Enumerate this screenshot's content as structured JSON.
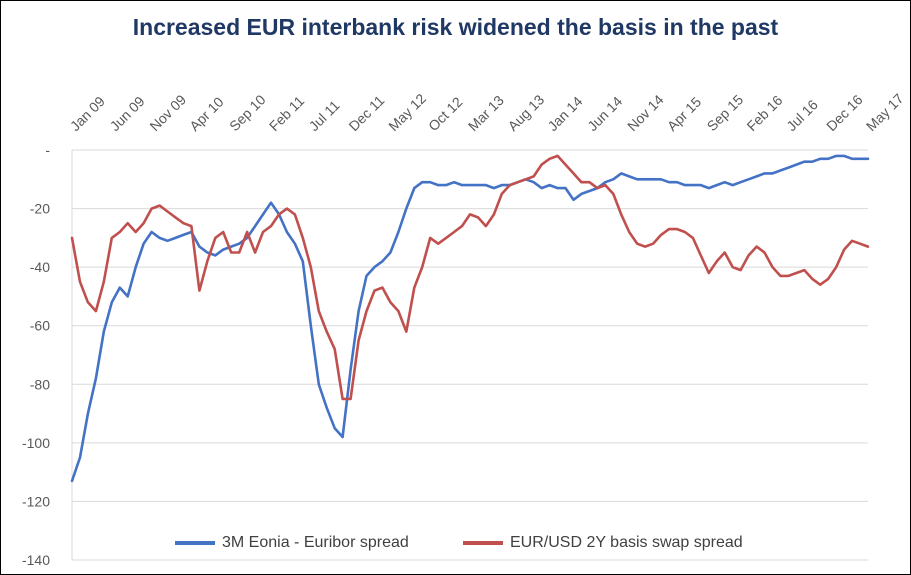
{
  "chart_data": {
    "type": "line",
    "title": "Increased EUR interbank risk widened the basis in the past",
    "xlabel": "",
    "ylabel": "",
    "x_tick_labels": [
      "Jan 09",
      "Jun 09",
      "Nov 09",
      "Apr 10",
      "Sep 10",
      "Feb 11",
      "Jul 11",
      "Dec 11",
      "May 12",
      "Oct 12",
      "Mar 13",
      "Aug 13",
      "Jan 14",
      "Jun 14",
      "Nov 14",
      "Apr 15",
      "Sep 15",
      "Feb 16",
      "Jul 16",
      "Dec 16",
      "May 17"
    ],
    "y_tick_labels": [
      "-",
      "-20",
      "-40",
      "-60",
      "-80",
      "-100",
      "-120",
      "-140"
    ],
    "ylim": [
      -140,
      0
    ],
    "grid": true,
    "legend_position": "bottom",
    "series": [
      {
        "name": "3M Eonia - Euribor spread",
        "color": "#4472C4",
        "points": [
          [
            "Jan 09",
            -113
          ],
          [
            "Feb 09",
            -105
          ],
          [
            "Mar 09",
            -90
          ],
          [
            "Apr 09",
            -78
          ],
          [
            "May 09",
            -62
          ],
          [
            "Jun 09",
            -52
          ],
          [
            "Jul 09",
            -47
          ],
          [
            "Aug 09",
            -50
          ],
          [
            "Sep 09",
            -40
          ],
          [
            "Oct 09",
            -32
          ],
          [
            "Nov 09",
            -28
          ],
          [
            "Dec 09",
            -30
          ],
          [
            "Jan 10",
            -31
          ],
          [
            "Feb 10",
            -30
          ],
          [
            "Mar 10",
            -29
          ],
          [
            "Apr 10",
            -28
          ],
          [
            "May 10",
            -33
          ],
          [
            "Jun 10",
            -35
          ],
          [
            "Jul 10",
            -36
          ],
          [
            "Aug 10",
            -34
          ],
          [
            "Sep 10",
            -33
          ],
          [
            "Oct 10",
            -32
          ],
          [
            "Nov 10",
            -30
          ],
          [
            "Dec 10",
            -26
          ],
          [
            "Jan 11",
            -22
          ],
          [
            "Feb 11",
            -18
          ],
          [
            "Mar 11",
            -22
          ],
          [
            "Apr 11",
            -28
          ],
          [
            "May 11",
            -32
          ],
          [
            "Jun 11",
            -38
          ],
          [
            "Jul 11",
            -60
          ],
          [
            "Aug 11",
            -80
          ],
          [
            "Sep 11",
            -88
          ],
          [
            "Oct 11",
            -95
          ],
          [
            "Nov 11",
            -98
          ],
          [
            "Dec 11",
            -75
          ],
          [
            "Jan 12",
            -55
          ],
          [
            "Feb 12",
            -43
          ],
          [
            "Mar 12",
            -40
          ],
          [
            "Apr 12",
            -38
          ],
          [
            "May 12",
            -35
          ],
          [
            "Jun 12",
            -28
          ],
          [
            "Jul 12",
            -20
          ],
          [
            "Aug 12",
            -13
          ],
          [
            "Sep 12",
            -11
          ],
          [
            "Oct 12",
            -11
          ],
          [
            "Nov 12",
            -12
          ],
          [
            "Dec 12",
            -12
          ],
          [
            "Jan 13",
            -11
          ],
          [
            "Feb 13",
            -12
          ],
          [
            "Mar 13",
            -12
          ],
          [
            "Apr 13",
            -12
          ],
          [
            "May 13",
            -12
          ],
          [
            "Jun 13",
            -13
          ],
          [
            "Jul 13",
            -12
          ],
          [
            "Aug 13",
            -12
          ],
          [
            "Sep 13",
            -11
          ],
          [
            "Oct 13",
            -10
          ],
          [
            "Nov 13",
            -11
          ],
          [
            "Dec 13",
            -13
          ],
          [
            "Jan 14",
            -12
          ],
          [
            "Feb 14",
            -13
          ],
          [
            "Mar 14",
            -13
          ],
          [
            "Apr 14",
            -17
          ],
          [
            "May 14",
            -15
          ],
          [
            "Jun 14",
            -14
          ],
          [
            "Jul 14",
            -13
          ],
          [
            "Aug 14",
            -11
          ],
          [
            "Sep 14",
            -10
          ],
          [
            "Oct 14",
            -8
          ],
          [
            "Nov 14",
            -9
          ],
          [
            "Dec 14",
            -10
          ],
          [
            "Jan 15",
            -10
          ],
          [
            "Feb 15",
            -10
          ],
          [
            "Mar 15",
            -10
          ],
          [
            "Apr 15",
            -11
          ],
          [
            "May 15",
            -11
          ],
          [
            "Jun 15",
            -12
          ],
          [
            "Jul 15",
            -12
          ],
          [
            "Aug 15",
            -12
          ],
          [
            "Sep 15",
            -13
          ],
          [
            "Oct 15",
            -12
          ],
          [
            "Nov 15",
            -11
          ],
          [
            "Dec 15",
            -12
          ],
          [
            "Jan 16",
            -11
          ],
          [
            "Feb 16",
            -10
          ],
          [
            "Mar 16",
            -9
          ],
          [
            "Apr 16",
            -8
          ],
          [
            "May 16",
            -8
          ],
          [
            "Jun 16",
            -7
          ],
          [
            "Jul 16",
            -6
          ],
          [
            "Aug 16",
            -5
          ],
          [
            "Sep 16",
            -4
          ],
          [
            "Oct 16",
            -4
          ],
          [
            "Nov 16",
            -3
          ],
          [
            "Dec 16",
            -3
          ],
          [
            "Jan 17",
            -2
          ],
          [
            "Feb 17",
            -2
          ],
          [
            "Mar 17",
            -3
          ],
          [
            "Apr 17",
            -3
          ],
          [
            "May 17",
            -3
          ]
        ]
      },
      {
        "name": "EUR/USD 2Y basis swap spread",
        "color": "#C0504D",
        "points": [
          [
            "Jan 09",
            -30
          ],
          [
            "Feb 09",
            -45
          ],
          [
            "Mar 09",
            -52
          ],
          [
            "Apr 09",
            -55
          ],
          [
            "May 09",
            -45
          ],
          [
            "Jun 09",
            -30
          ],
          [
            "Jul 09",
            -28
          ],
          [
            "Aug 09",
            -25
          ],
          [
            "Sep 09",
            -28
          ],
          [
            "Oct 09",
            -25
          ],
          [
            "Nov 09",
            -20
          ],
          [
            "Dec 09",
            -19
          ],
          [
            "Jan 10",
            -21
          ],
          [
            "Feb 10",
            -23
          ],
          [
            "Mar 10",
            -25
          ],
          [
            "Apr 10",
            -26
          ],
          [
            "May 10",
            -48
          ],
          [
            "Jun 10",
            -38
          ],
          [
            "Jul 10",
            -30
          ],
          [
            "Aug 10",
            -28
          ],
          [
            "Sep 10",
            -35
          ],
          [
            "Oct 10",
            -35
          ],
          [
            "Nov 10",
            -28
          ],
          [
            "Dec 10",
            -35
          ],
          [
            "Jan 11",
            -28
          ],
          [
            "Feb 11",
            -26
          ],
          [
            "Mar 11",
            -22
          ],
          [
            "Apr 11",
            -20
          ],
          [
            "May 11",
            -22
          ],
          [
            "Jun 11",
            -30
          ],
          [
            "Jul 11",
            -40
          ],
          [
            "Aug 11",
            -55
          ],
          [
            "Sep 11",
            -62
          ],
          [
            "Oct 11",
            -68
          ],
          [
            "Nov 11",
            -85
          ],
          [
            "Dec 11",
            -85
          ],
          [
            "Jan 12",
            -65
          ],
          [
            "Feb 12",
            -55
          ],
          [
            "Mar 12",
            -48
          ],
          [
            "Apr 12",
            -47
          ],
          [
            "May 12",
            -52
          ],
          [
            "Jun 12",
            -55
          ],
          [
            "Jul 12",
            -62
          ],
          [
            "Aug 12",
            -47
          ],
          [
            "Sep 12",
            -40
          ],
          [
            "Oct 12",
            -30
          ],
          [
            "Nov 12",
            -32
          ],
          [
            "Dec 12",
            -30
          ],
          [
            "Jan 13",
            -28
          ],
          [
            "Feb 13",
            -26
          ],
          [
            "Mar 13",
            -22
          ],
          [
            "Apr 13",
            -23
          ],
          [
            "May 13",
            -26
          ],
          [
            "Jun 13",
            -22
          ],
          [
            "Jul 13",
            -15
          ],
          [
            "Aug 13",
            -12
          ],
          [
            "Sep 13",
            -11
          ],
          [
            "Oct 13",
            -10
          ],
          [
            "Nov 13",
            -9
          ],
          [
            "Dec 13",
            -5
          ],
          [
            "Jan 14",
            -3
          ],
          [
            "Feb 14",
            -2
          ],
          [
            "Mar 14",
            -5
          ],
          [
            "Apr 14",
            -8
          ],
          [
            "May 14",
            -11
          ],
          [
            "Jun 14",
            -11
          ],
          [
            "Jul 14",
            -13
          ],
          [
            "Aug 14",
            -12
          ],
          [
            "Sep 14",
            -15
          ],
          [
            "Oct 14",
            -22
          ],
          [
            "Nov 14",
            -28
          ],
          [
            "Dec 14",
            -32
          ],
          [
            "Jan 15",
            -33
          ],
          [
            "Feb 15",
            -32
          ],
          [
            "Mar 15",
            -29
          ],
          [
            "Apr 15",
            -27
          ],
          [
            "May 15",
            -27
          ],
          [
            "Jun 15",
            -28
          ],
          [
            "Jul 15",
            -30
          ],
          [
            "Aug 15",
            -36
          ],
          [
            "Sep 15",
            -42
          ],
          [
            "Oct 15",
            -38
          ],
          [
            "Nov 15",
            -35
          ],
          [
            "Dec 15",
            -40
          ],
          [
            "Jan 16",
            -41
          ],
          [
            "Feb 16",
            -36
          ],
          [
            "Mar 16",
            -33
          ],
          [
            "Apr 16",
            -35
          ],
          [
            "May 16",
            -40
          ],
          [
            "Jun 16",
            -43
          ],
          [
            "Jul 16",
            -43
          ],
          [
            "Aug 16",
            -42
          ],
          [
            "Sep 16",
            -41
          ],
          [
            "Oct 16",
            -44
          ],
          [
            "Nov 16",
            -46
          ],
          [
            "Dec 16",
            -44
          ],
          [
            "Jan 17",
            -40
          ],
          [
            "Feb 17",
            -34
          ],
          [
            "Mar 17",
            -31
          ],
          [
            "Apr 17",
            -32
          ],
          [
            "May 17",
            -33
          ]
        ]
      }
    ]
  }
}
